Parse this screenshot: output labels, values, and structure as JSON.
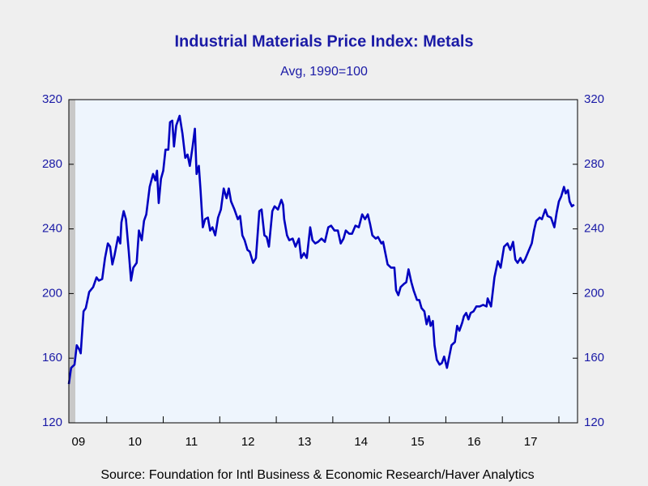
{
  "chart_data": {
    "type": "line",
    "title": "Industrial Materials Price Index: Metals",
    "subtitle": "Avg, 1990=100",
    "source": "Source:  Foundation for Intl Business & Economic Research/Haver Analytics",
    "color": "#0000c0",
    "xlim": [
      2009.33,
      2018.33
    ],
    "xticks": [
      {
        "value": 2009.5,
        "label": "09"
      },
      {
        "value": 2010.5,
        "label": "10"
      },
      {
        "value": 2011.5,
        "label": "11"
      },
      {
        "value": 2012.5,
        "label": "12"
      },
      {
        "value": 2013.5,
        "label": "13"
      },
      {
        "value": 2014.5,
        "label": "14"
      },
      {
        "value": 2015.5,
        "label": "15"
      },
      {
        "value": 2016.5,
        "label": "16"
      },
      {
        "value": 2017.5,
        "label": "17"
      }
    ],
    "ylim": [
      120,
      320
    ],
    "yticks": [
      120,
      160,
      200,
      240,
      280,
      320
    ],
    "y2lim": [
      120,
      320
    ],
    "y2ticks": [
      120,
      160,
      200,
      240,
      280,
      320
    ],
    "x": [
      2009.33,
      2009.37,
      2009.43,
      2009.47,
      2009.52,
      2009.54,
      2009.59,
      2009.63,
      2009.69,
      2009.76,
      2009.82,
      2009.86,
      2009.92,
      2009.97,
      2010.02,
      2010.06,
      2010.1,
      2010.14,
      2010.2,
      2010.24,
      2010.26,
      2010.3,
      2010.34,
      2010.39,
      2010.43,
      2010.47,
      2010.53,
      2010.57,
      2010.62,
      2010.66,
      2010.7,
      2010.76,
      2010.82,
      2010.86,
      2010.89,
      2010.92,
      2010.96,
      2011.0,
      2011.04,
      2011.09,
      2011.12,
      2011.16,
      2011.19,
      2011.23,
      2011.29,
      2011.34,
      2011.39,
      2011.43,
      2011.47,
      2011.52,
      2011.56,
      2011.59,
      2011.63,
      2011.66,
      2011.7,
      2011.74,
      2011.79,
      2011.83,
      2011.87,
      2011.92,
      2011.97,
      2012.02,
      2012.07,
      2012.12,
      2012.16,
      2012.2,
      2012.26,
      2012.32,
      2012.36,
      2012.4,
      2012.44,
      2012.49,
      2012.53,
      2012.59,
      2012.64,
      2012.7,
      2012.74,
      2012.79,
      2012.83,
      2012.87,
      2012.93,
      2012.97,
      2013.03,
      2013.09,
      2013.12,
      2013.14,
      2013.19,
      2013.23,
      2013.29,
      2013.34,
      2013.4,
      2013.44,
      2013.49,
      2013.54,
      2013.6,
      2013.64,
      2013.69,
      2013.74,
      2013.8,
      2013.86,
      2013.92,
      2013.97,
      2014.03,
      2014.09,
      2014.14,
      2014.19,
      2014.23,
      2014.29,
      2014.34,
      2014.4,
      2014.46,
      2014.52,
      2014.57,
      2014.62,
      2014.66,
      2014.7,
      2014.76,
      2014.8,
      2014.86,
      2014.89,
      2014.93,
      2014.97,
      2015.03,
      2015.09,
      2015.12,
      2015.16,
      2015.2,
      2015.26,
      2015.3,
      2015.34,
      2015.39,
      2015.43,
      2015.49,
      2015.53,
      2015.57,
      2015.62,
      2015.66,
      2015.7,
      2015.73,
      2015.77,
      2015.8,
      2015.84,
      2015.89,
      2015.93,
      2015.97,
      2016.02,
      2016.06,
      2016.1,
      2016.16,
      2016.2,
      2016.24,
      2016.29,
      2016.32,
      2016.36,
      2016.4,
      2016.44,
      2016.49,
      2016.54,
      2016.6,
      2016.66,
      2016.72,
      2016.74,
      2016.8,
      2016.86,
      2016.92,
      2016.97,
      2017.03,
      2017.09,
      2017.14,
      2017.19,
      2017.23,
      2017.27,
      2017.32,
      2017.36,
      2017.4,
      2017.46,
      2017.52,
      2017.56,
      2017.6,
      2017.66,
      2017.7,
      2017.76,
      2017.8,
      2017.86,
      2017.92,
      2017.96,
      2018.0,
      2018.04,
      2018.09,
      2018.12,
      2018.16,
      2018.19,
      2018.23,
      2018.27
    ],
    "values": [
      144,
      154,
      156,
      168,
      165,
      163,
      189,
      191,
      201,
      204,
      210,
      208,
      209,
      222,
      231,
      229,
      218,
      224,
      235,
      231,
      244,
      251,
      246,
      226,
      208,
      216,
      219,
      239,
      233,
      245,
      249,
      266,
      274,
      270,
      276,
      256,
      271,
      276,
      289,
      289,
      306,
      307,
      291,
      304,
      310,
      299,
      284,
      286,
      279,
      291,
      302,
      274,
      279,
      264,
      241,
      246,
      247,
      239,
      241,
      236,
      247,
      252,
      265,
      259,
      265,
      257,
      252,
      246,
      248,
      236,
      233,
      227,
      226,
      219,
      222,
      251,
      252,
      236,
      235,
      229,
      251,
      254,
      252,
      258,
      255,
      246,
      236,
      233,
      234,
      229,
      234,
      222,
      225,
      222,
      241,
      233,
      231,
      232,
      234,
      232,
      241,
      242,
      239,
      239,
      231,
      234,
      239,
      237,
      237,
      242,
      241,
      249,
      246,
      249,
      243,
      236,
      234,
      235,
      231,
      232,
      225,
      218,
      216,
      216,
      202,
      199,
      204,
      206,
      207,
      215,
      207,
      202,
      196,
      196,
      191,
      189,
      181,
      186,
      180,
      183,
      168,
      159,
      156,
      157,
      161,
      154,
      161,
      168,
      170,
      180,
      177,
      182,
      186,
      188,
      184,
      188,
      189,
      192,
      192,
      193,
      192,
      197,
      192,
      210,
      220,
      216,
      229,
      231,
      227,
      232,
      221,
      219,
      222,
      219,
      221,
      226,
      231,
      239,
      245,
      247,
      246,
      252,
      248,
      247,
      241,
      250,
      257,
      260,
      266,
      262,
      264,
      257,
      254,
      255
    ]
  }
}
